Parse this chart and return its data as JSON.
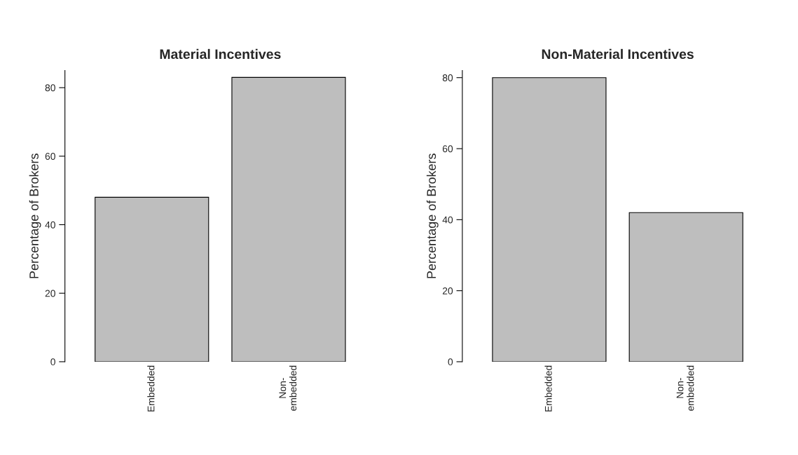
{
  "chart_data": [
    {
      "type": "bar",
      "title": "Material Incentives",
      "ylabel": "Percentage of Brokers",
      "categories": [
        "Embedded",
        "Non-\nembedded"
      ],
      "values": [
        48,
        83
      ],
      "color": "#bebebe",
      "ylim": [
        0,
        85
      ],
      "yticks": [
        0,
        20,
        40,
        60,
        80
      ],
      "grid": false,
      "legend": false
    },
    {
      "type": "bar",
      "title": "Non-Material Incentives",
      "ylabel": "Percentage of Brokers",
      "categories": [
        "Embedded",
        "Non-\nembedded"
      ],
      "values": [
        80,
        42
      ],
      "color": "#bebebe",
      "ylim": [
        0,
        82
      ],
      "yticks": [
        0,
        20,
        40,
        60,
        80
      ],
      "grid": false,
      "legend": false
    }
  ]
}
